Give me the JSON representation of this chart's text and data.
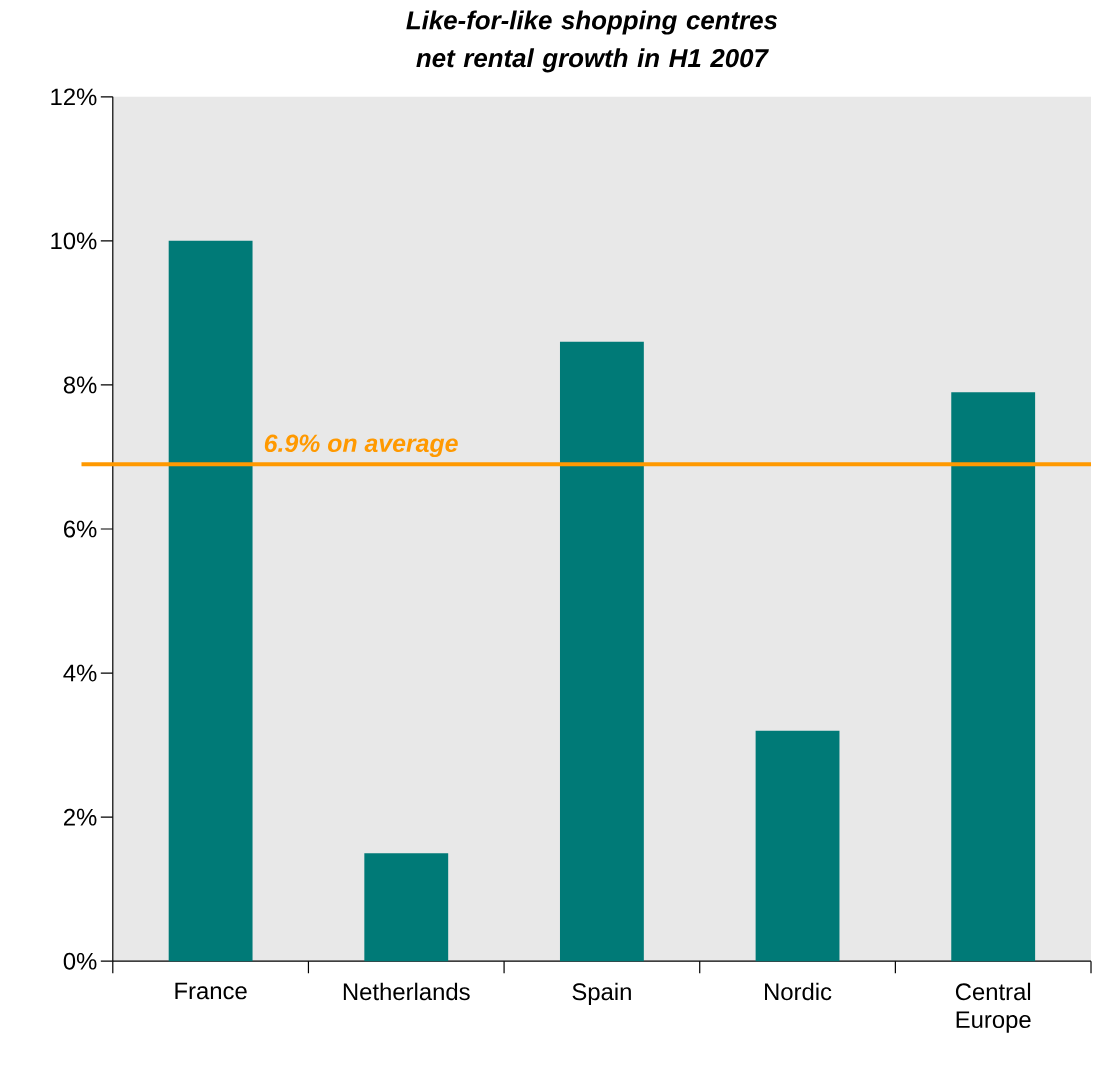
{
  "chart_data": {
    "type": "bar",
    "title": "Like-for-like shopping centres net rental growth in H1 2007",
    "categories": [
      "France",
      "Netherlands",
      "Spain",
      "Nordic",
      "Central Europe"
    ],
    "values": [
      10.0,
      1.5,
      8.6,
      3.2,
      7.9
    ],
    "color": "#007a77",
    "ylim": [
      0,
      12
    ],
    "yticks": [
      {
        "value": 0,
        "label": "0%"
      },
      {
        "value": 2,
        "label": "2%"
      },
      {
        "value": 4,
        "label": "4%"
      },
      {
        "value": 6,
        "label": "6%"
      },
      {
        "value": 8,
        "label": "8%"
      },
      {
        "value": 10,
        "label": "10%"
      },
      {
        "value": 12,
        "label": "12%"
      }
    ],
    "grid": false,
    "ref_lines": [
      {
        "axis": "y",
        "value": 6.9,
        "label": "6.9% on average",
        "color": "#ff9900",
        "line_style": "solid"
      }
    ]
  }
}
